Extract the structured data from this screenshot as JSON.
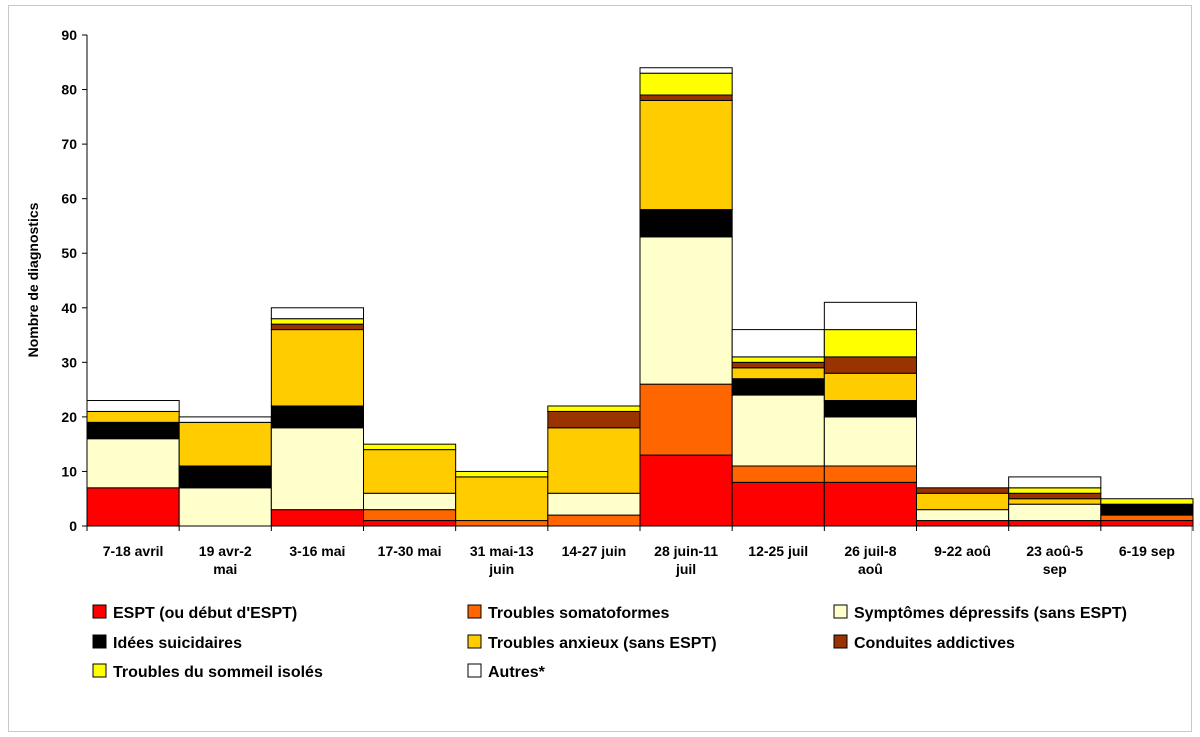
{
  "chart_data": {
    "type": "bar",
    "stacked": true,
    "title": "",
    "xlabel": "",
    "ylabel": "Nombre de diagnostics",
    "ylim": [
      0,
      90
    ],
    "yticks": [
      0,
      10,
      20,
      30,
      40,
      50,
      60,
      70,
      80,
      90
    ],
    "grid": false,
    "legend_position": "bottom",
    "categories": [
      [
        "7-18 avril"
      ],
      [
        "19 avr-2",
        "mai"
      ],
      [
        "3-16 mai"
      ],
      [
        "17-30 mai"
      ],
      [
        "31 mai-13",
        "juin"
      ],
      [
        "14-27 juin"
      ],
      [
        "28 juin-11",
        "juil"
      ],
      [
        "12-25 juil"
      ],
      [
        "26 juil-8",
        "aoû"
      ],
      [
        "9-22 aoû"
      ],
      [
        "23 aoû-5",
        "sep"
      ],
      [
        "6-19 sep"
      ]
    ],
    "series": [
      {
        "name": "ESPT (ou début d'ESPT)",
        "color": "#ff0000",
        "values": [
          7,
          0,
          3,
          1,
          0,
          0,
          13,
          8,
          8,
          1,
          1,
          1
        ]
      },
      {
        "name": "Troubles somatoformes",
        "color": "#ff6600",
        "values": [
          0,
          0,
          0,
          2,
          1,
          2,
          13,
          3,
          3,
          0,
          0,
          1
        ]
      },
      {
        "name": "Symptômes dépressifs (sans ESPT)",
        "color": "#ffffcc",
        "values": [
          9,
          7,
          15,
          3,
          0,
          4,
          27,
          13,
          9,
          2,
          3,
          0
        ]
      },
      {
        "name": "Idées suicidaires",
        "color": "#000000",
        "values": [
          3,
          4,
          4,
          0,
          0,
          0,
          5,
          3,
          3,
          0,
          0,
          2
        ]
      },
      {
        "name": "Troubles anxieux (sans ESPT)",
        "color": "#ffcc00",
        "values": [
          2,
          8,
          14,
          8,
          8,
          12,
          20,
          2,
          5,
          3,
          1,
          0
        ]
      },
      {
        "name": "Conduites addictives",
        "color": "#993300",
        "values": [
          0,
          0,
          1,
          0,
          0,
          3,
          1,
          1,
          3,
          1,
          1,
          0
        ]
      },
      {
        "name": "Troubles du sommeil isolés",
        "color": "#ffff00",
        "values": [
          0,
          0,
          1,
          1,
          1,
          1,
          4,
          1,
          5,
          0,
          1,
          1
        ]
      },
      {
        "name": "Autres*",
        "color": "#ffffff",
        "values": [
          2,
          1,
          2,
          0,
          0,
          0,
          1,
          5,
          5,
          0,
          2,
          0
        ]
      }
    ]
  }
}
